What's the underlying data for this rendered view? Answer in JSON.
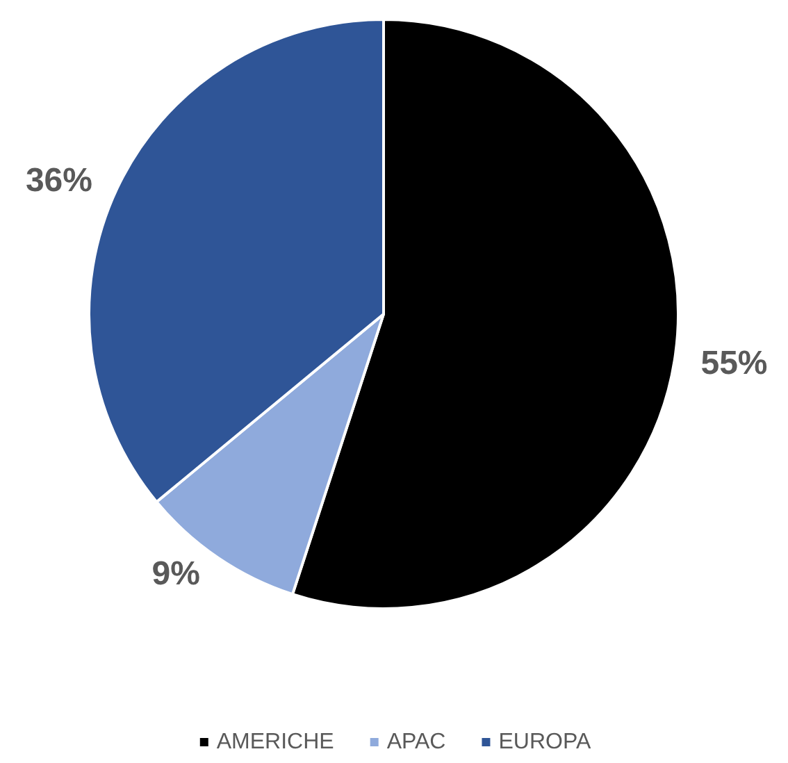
{
  "chart_data": {
    "type": "pie",
    "categories": [
      "AMERICHE",
      "APAC",
      "EUROPA"
    ],
    "values": [
      55,
      9,
      36
    ],
    "colors": [
      "#000000",
      "#8faadc",
      "#2f5597"
    ],
    "value_labels": [
      "55%",
      "9%",
      "36%"
    ],
    "legend": "bottom"
  }
}
